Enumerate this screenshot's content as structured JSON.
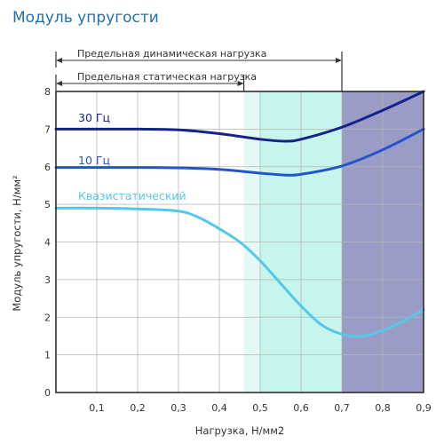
{
  "chart_data": {
    "type": "line",
    "title": "Модуль упругости",
    "xlabel": "Нагрузка, Н/мм2",
    "ylabel": "Модуль упругости, Н/мм²",
    "xlim": [
      0,
      0.9
    ],
    "ylim": [
      0,
      8
    ],
    "x_ticks": [
      0.1,
      0.2,
      0.3,
      0.4,
      0.5,
      0.6,
      0.7,
      0.8,
      0.9
    ],
    "x_tick_labels": [
      "0,1",
      "0,2",
      "0,3",
      "0,4",
      "0,5",
      "0,6",
      "0,7",
      "0,8",
      "0,9"
    ],
    "y_ticks": [
      0,
      1,
      2,
      3,
      4,
      5,
      6,
      7,
      8
    ],
    "y_tick_labels": [
      "0",
      "1",
      "2",
      "3",
      "4",
      "5",
      "6",
      "7",
      "8"
    ],
    "grid": true,
    "series": [
      {
        "name": "30 Гц",
        "color": "#15228a",
        "x": [
          0,
          0.1,
          0.2,
          0.3,
          0.4,
          0.5,
          0.56,
          0.6,
          0.7,
          0.8,
          0.9
        ],
        "y": [
          7.0,
          7.0,
          7.0,
          6.98,
          6.88,
          6.73,
          6.68,
          6.73,
          7.05,
          7.5,
          8.0
        ]
      },
      {
        "name": "10 Гц",
        "color": "#2255cc",
        "x": [
          0,
          0.1,
          0.2,
          0.3,
          0.4,
          0.5,
          0.56,
          0.6,
          0.7,
          0.8,
          0.9
        ],
        "y": [
          5.98,
          5.98,
          5.98,
          5.97,
          5.93,
          5.83,
          5.78,
          5.8,
          6.02,
          6.45,
          7.0
        ]
      },
      {
        "name": "Квазистатический",
        "color": "#55c8e8",
        "x": [
          0,
          0.1,
          0.2,
          0.3,
          0.35,
          0.4,
          0.45,
          0.5,
          0.55,
          0.6,
          0.65,
          0.7,
          0.75,
          0.8,
          0.85,
          0.9
        ],
        "y": [
          4.9,
          4.9,
          4.88,
          4.82,
          4.65,
          4.35,
          4.0,
          3.5,
          2.9,
          2.3,
          1.8,
          1.55,
          1.5,
          1.65,
          1.9,
          2.2
        ]
      }
    ],
    "bands": [
      {
        "x0": 0.46,
        "x1": 0.5,
        "color": "#e4f8f5"
      },
      {
        "x0": 0.5,
        "x1": 0.7,
        "color": "#c6f5ee"
      },
      {
        "x0": 0.7,
        "x1": 0.9,
        "color": "#9a9cc6"
      }
    ],
    "annotations": [
      {
        "text": "Предельная динамическая нагрузка",
        "x0": 0,
        "x1": 0.7,
        "y_level": 1
      },
      {
        "text": "Предельная статическая нагрузка",
        "x0": 0,
        "x1": 0.46,
        "y_level": 2
      }
    ]
  }
}
